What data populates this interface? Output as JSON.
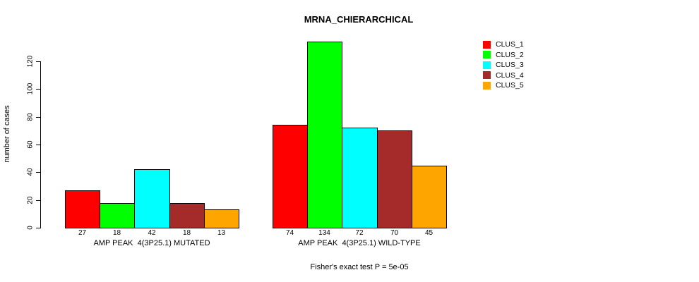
{
  "figure": {
    "title": "MRNA_CHIERARCHICAL",
    "ylabel": "number of cases",
    "annotation": "Fisher's exact test P = 5e-05"
  },
  "chart_data": {
    "type": "bar",
    "title": "MRNA_CHIERARCHICAL",
    "xlabel": "",
    "ylabel": "number of cases",
    "ylim": [
      0,
      134
    ],
    "yticks": [
      0,
      20,
      40,
      60,
      80,
      100,
      120
    ],
    "grid": false,
    "legend_position": "top-right",
    "series_names": [
      "CLUS_1",
      "CLUS_2",
      "CLUS_3",
      "CLUS_4",
      "CLUS_5"
    ],
    "colors": [
      "#FF0000",
      "#00FF00",
      "#00FFFF",
      "#A52A2A",
      "#FFA500"
    ],
    "groups": [
      {
        "label": "AMP PEAK  4(3P25.1) MUTATED",
        "values": [
          27,
          18,
          42,
          18,
          13
        ]
      },
      {
        "label": "AMP PEAK  4(3P25.1) WILD-TYPE",
        "values": [
          74,
          134,
          72,
          70,
          45
        ]
      }
    ],
    "annotation": "Fisher's exact test P = 5e-05"
  }
}
